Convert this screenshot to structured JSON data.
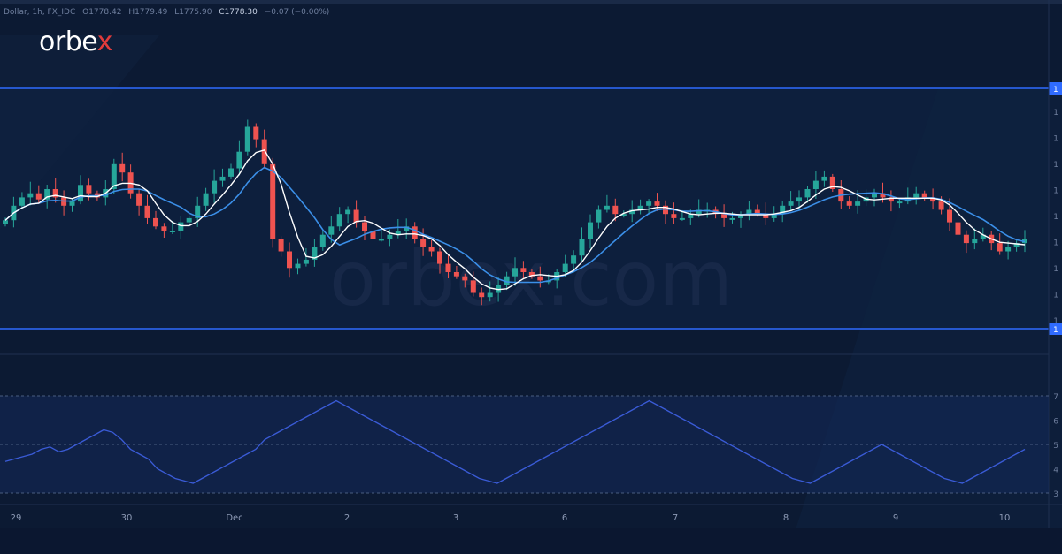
{
  "header": {
    "symbol": "Dollar, 1h, FX_IDC",
    "open": "O1778.42",
    "high": "H1779.49",
    "low": "L1775.90",
    "close": "C1778.30",
    "change": "−0.07 (−0.00%)"
  },
  "brand": {
    "prefix": "orbe",
    "accent": "x",
    "accent_color": "#e23b3b"
  },
  "watermark": "orbex.com",
  "colors": {
    "background": "#0c1a33",
    "bullish": "#26a69a",
    "bearish": "#ef5350",
    "ma_fast": "#ffffff",
    "ma_slow": "#3b8fe8",
    "levels": "#2f6bff",
    "rsi_line": "#3a5bd6"
  },
  "chart_data": {
    "type": "candlestick",
    "timeframe": "1h",
    "x_labels": [
      "29",
      "30",
      "Dec",
      "2",
      "3",
      "6",
      "7",
      "8",
      "9",
      "10"
    ],
    "horizontal_levels": [
      {
        "label": "1",
        "role": "resistance"
      },
      {
        "label": "1",
        "role": "support"
      }
    ],
    "price_axis_labels": [
      "1",
      "1",
      "1",
      "1",
      "1",
      "1",
      "1",
      "1",
      "1"
    ],
    "closes_normalized": [
      0.45,
      0.52,
      0.56,
      0.58,
      0.55,
      0.6,
      0.56,
      0.52,
      0.54,
      0.62,
      0.58,
      0.56,
      0.6,
      0.72,
      0.68,
      0.58,
      0.52,
      0.46,
      0.42,
      0.4,
      0.4,
      0.44,
      0.46,
      0.52,
      0.58,
      0.64,
      0.66,
      0.7,
      0.78,
      0.9,
      0.84,
      0.72,
      0.36,
      0.3,
      0.22,
      0.24,
      0.26,
      0.32,
      0.38,
      0.42,
      0.48,
      0.5,
      0.44,
      0.4,
      0.36,
      0.36,
      0.38,
      0.4,
      0.42,
      0.36,
      0.32,
      0.3,
      0.24,
      0.2,
      0.18,
      0.16,
      0.1,
      0.08,
      0.1,
      0.14,
      0.18,
      0.22,
      0.2,
      0.18,
      0.16,
      0.16,
      0.2,
      0.24,
      0.28,
      0.36,
      0.44,
      0.5,
      0.52,
      0.48,
      0.48,
      0.5,
      0.52,
      0.54,
      0.52,
      0.48,
      0.46,
      0.46,
      0.48,
      0.5,
      0.5,
      0.48,
      0.46,
      0.46,
      0.48,
      0.5,
      0.48,
      0.46,
      0.48,
      0.52,
      0.54,
      0.56,
      0.6,
      0.64,
      0.66,
      0.6,
      0.54,
      0.52,
      0.54,
      0.56,
      0.58,
      0.56,
      0.54,
      0.54,
      0.56,
      0.58,
      0.56,
      0.54,
      0.5,
      0.44,
      0.38,
      0.34,
      0.36,
      0.38,
      0.34,
      0.3,
      0.32,
      0.34,
      0.36
    ],
    "rsi": {
      "levels": [
        30,
        50,
        70
      ],
      "axis_labels": [
        "7",
        "6",
        "5",
        "4",
        "3"
      ],
      "values": [
        43,
        44,
        45,
        46,
        48,
        49,
        47,
        48,
        50,
        52,
        54,
        56,
        55,
        52,
        48,
        46,
        44,
        40,
        38,
        36,
        35,
        34,
        36,
        38,
        40,
        42,
        44,
        46,
        48,
        52,
        54,
        56,
        58,
        60,
        62,
        64,
        66,
        68,
        66,
        64,
        62,
        60,
        58,
        56,
        54,
        52,
        50,
        48,
        46,
        44,
        42,
        40,
        38,
        36,
        35,
        34,
        36,
        38,
        40,
        42,
        44,
        46,
        48,
        50,
        52,
        54,
        56,
        58,
        60,
        62,
        64,
        66,
        68,
        66,
        64,
        62,
        60,
        58,
        56,
        54,
        52,
        50,
        48,
        46,
        44,
        42,
        40,
        38,
        36,
        35,
        34,
        36,
        38,
        40,
        42,
        44,
        46,
        48,
        50,
        48,
        46,
        44,
        42,
        40,
        38,
        36,
        35,
        34,
        36,
        38,
        40,
        42,
        44,
        46,
        48
      ]
    }
  }
}
